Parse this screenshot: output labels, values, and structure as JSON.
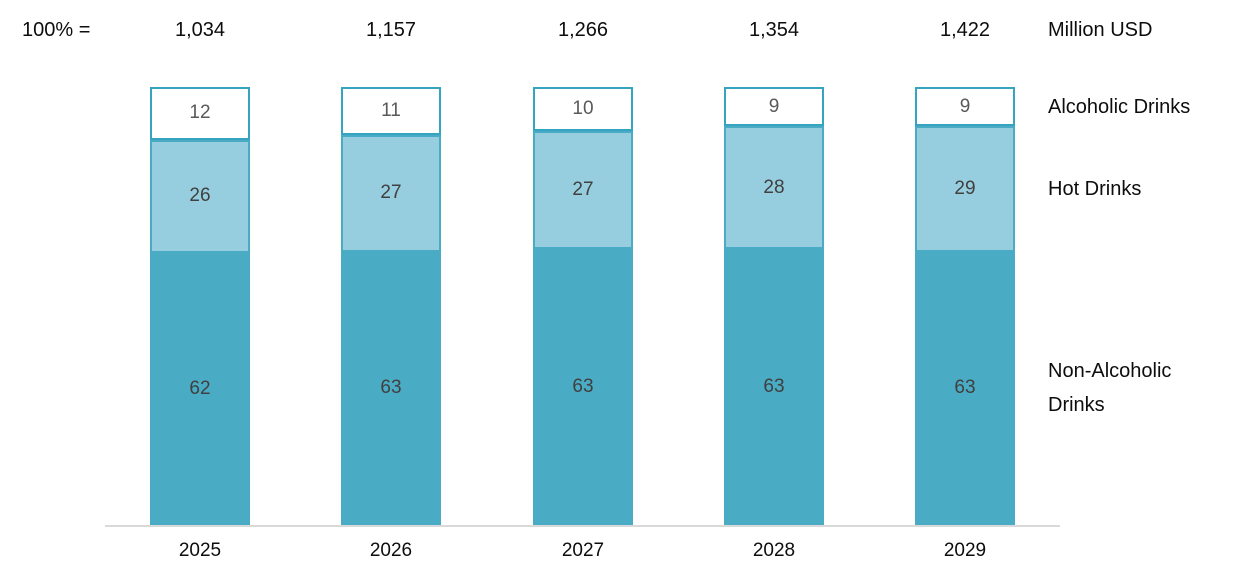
{
  "header": {
    "prefix_label": "100% =",
    "unit_label": "Million USD"
  },
  "chart_data": {
    "type": "bar",
    "subtype": "stacked-100-percent",
    "title": "",
    "xlabel": "",
    "ylabel": "",
    "legend_position": "right",
    "grid": false,
    "categories": [
      "2025",
      "2026",
      "2027",
      "2028",
      "2029"
    ],
    "totals_display": [
      "1,034",
      "1,157",
      "1,266",
      "1,354",
      "1,422"
    ],
    "totals_unit": "Million USD",
    "series": [
      {
        "name": "Alcoholic Drinks",
        "values": [
          12,
          11,
          10,
          9,
          9
        ],
        "fill": "#ffffff",
        "border": "#35a4c0",
        "label_color": "#595959"
      },
      {
        "name": "Hot Drinks",
        "values": [
          26,
          27,
          27,
          28,
          29
        ],
        "fill": "#97cedf",
        "border": "#4aabc4",
        "label_color": "#404040"
      },
      {
        "name": "Non-Alcoholic Drinks",
        "values": [
          62,
          63,
          63,
          63,
          63
        ],
        "fill": "#4aabc4",
        "border": "#4aabc4",
        "label_color": "#404040"
      }
    ],
    "colors": {
      "axis_line": "#d9d9d9",
      "text": "#0d0d0d"
    }
  }
}
